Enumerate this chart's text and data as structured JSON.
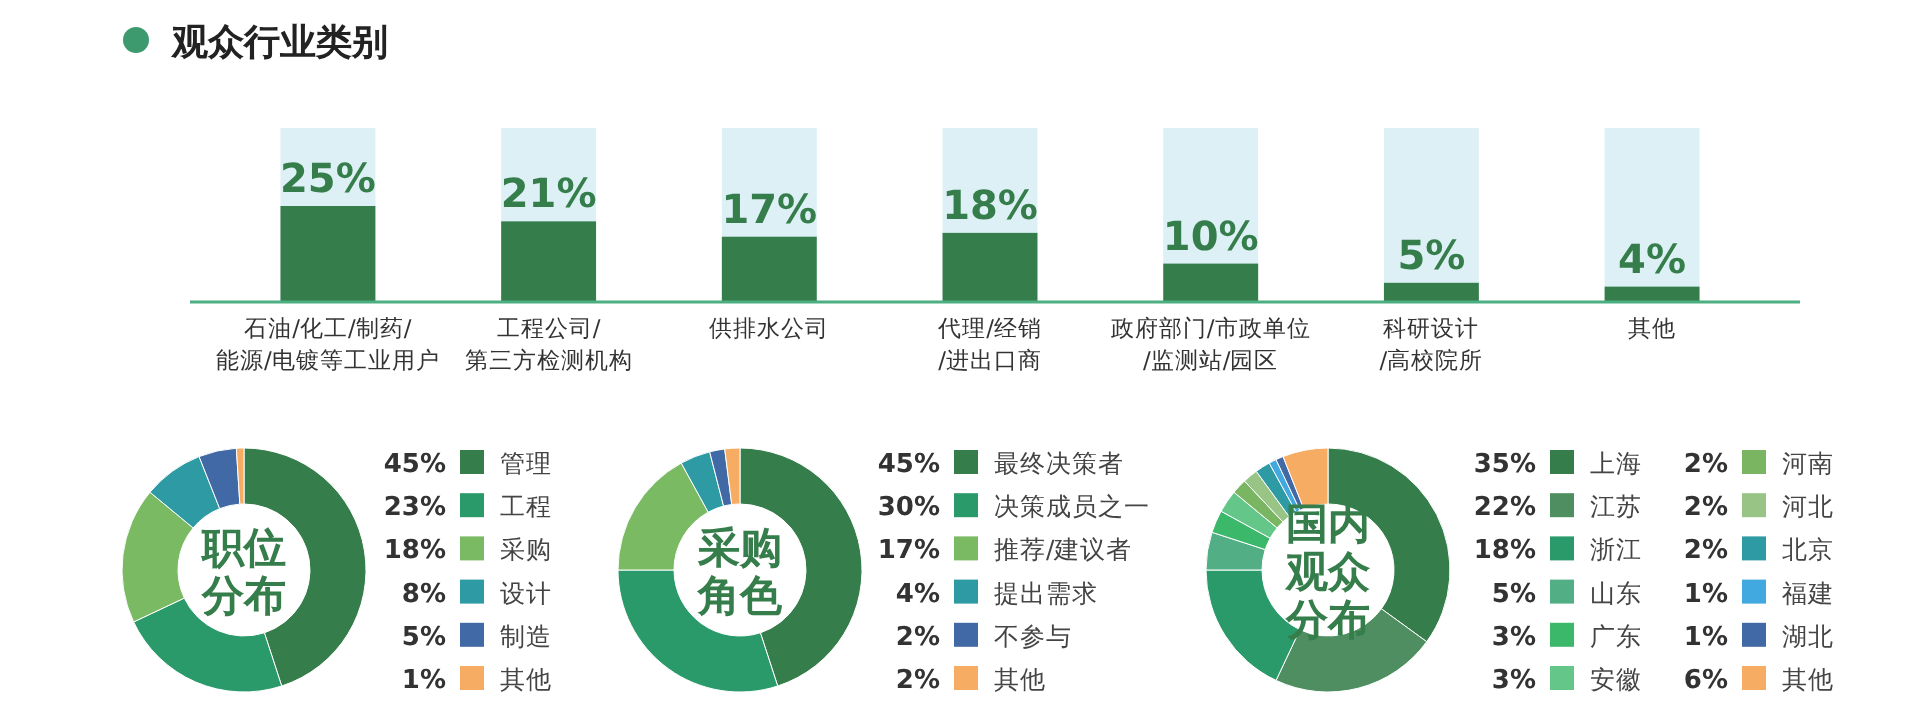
{
  "chart_data": [
    {
      "type": "bar",
      "title": "观众行业类别",
      "categories": [
        "石油/化工/制药/能源/电镀等工业用户",
        "工程公司/第三方检测机构",
        "供排水公司",
        "代理/经销/进出口商",
        "政府部门/市政单位/监测站/园区",
        "科研设计/高校院所",
        "其他"
      ],
      "values": [
        25,
        21,
        17,
        18,
        10,
        5,
        4
      ],
      "value_labels": [
        "25%",
        "21%",
        "17%",
        "18%",
        "10%",
        "5%",
        "4%"
      ],
      "color": "#357d4a"
    },
    {
      "type": "donut",
      "title": "职位分布",
      "categories": [
        "管理",
        "工程",
        "采购",
        "设计",
        "制造",
        "其他"
      ],
      "values": [
        45,
        23,
        18,
        8,
        5,
        1
      ],
      "value_labels": [
        "45%",
        "23%",
        "18%",
        "8%",
        "5%",
        "1%"
      ],
      "colors": [
        "#357d4a",
        "#2a9a6a",
        "#7aba62",
        "#2e9aa3",
        "#4169a5",
        "#f6ac62"
      ],
      "legend": "right"
    },
    {
      "type": "donut",
      "title": "采购角色",
      "categories": [
        "最终决策者",
        "决策成员之一",
        "推荐/建议者",
        "提出需求",
        "不参与",
        "其他"
      ],
      "values": [
        45,
        30,
        17,
        4,
        2,
        2
      ],
      "value_labels": [
        "45%",
        "30%",
        "17%",
        "4%",
        "2%",
        "2%"
      ],
      "colors": [
        "#357d4a",
        "#2a9a6a",
        "#7aba62",
        "#2e9aa3",
        "#4169a5",
        "#f6ac62"
      ],
      "legend": "right"
    },
    {
      "type": "donut",
      "title": "国内观众分布",
      "categories": [
        "上海",
        "江苏",
        "浙江",
        "山东",
        "广东",
        "安徽",
        "河南",
        "河北",
        "北京",
        "福建",
        "湖北",
        "其他"
      ],
      "values": [
        35,
        22,
        18,
        5,
        3,
        3,
        2,
        2,
        2,
        1,
        1,
        6
      ],
      "value_labels": [
        "35%",
        "22%",
        "18%",
        "5%",
        "3%",
        "3%",
        "2%",
        "2%",
        "2%",
        "1%",
        "1%",
        "6%"
      ],
      "colors": [
        "#357d4a",
        "#4e8e60",
        "#2a9a6a",
        "#52ae85",
        "#3bb86a",
        "#65c68a",
        "#7ab562",
        "#98c585",
        "#2e9aa3",
        "#42a8e0",
        "#4169a5",
        "#f6ac62"
      ],
      "legend": "right"
    }
  ]
}
